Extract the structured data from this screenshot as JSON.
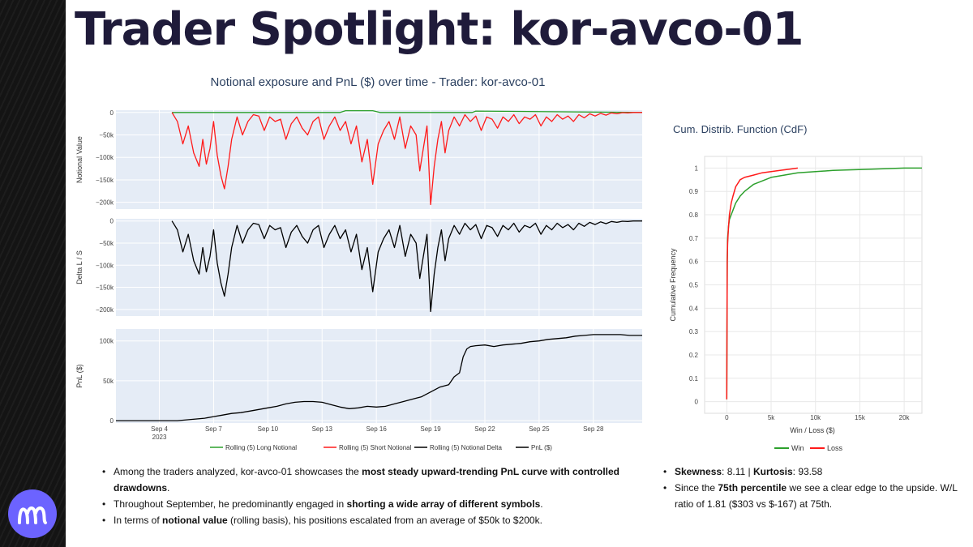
{
  "page": {
    "title": "Trader Spotlight: kor-avco-01"
  },
  "colors": {
    "long": "#2ca02c",
    "short": "#ff1a1a",
    "delta": "#000000",
    "pnl": "#000000",
    "win": "#2ca02c",
    "loss": "#ff1a1a",
    "plot_bg": "#e5ecf6",
    "accent": "#6c63ff"
  },
  "chart_data": [
    {
      "type": "line",
      "title": "Notional exposure and PnL ($) over time - Trader: kor-avco-01",
      "x_tick_labels": [
        "Sep 4",
        "Sep 7",
        "Sep 10",
        "Sep 13",
        "Sep 16",
        "Sep 19",
        "Sep 22",
        "Sep 25",
        "Sep 28"
      ],
      "x_year_label": "2023",
      "x_day_range": [
        1.6,
        30.7
      ],
      "panels": [
        {
          "ylabel": "Notional Value",
          "ylim": [
            -215000,
            5000
          ],
          "ytick_values": [
            0,
            -50000,
            -100000,
            -150000,
            -200000
          ],
          "ytick_labels": [
            "0",
            "−50k",
            "−100k",
            "−150k",
            "−200k"
          ]
        },
        {
          "ylabel": "Delta L / S",
          "ylim": [
            -215000,
            5000
          ],
          "ytick_values": [
            0,
            -50000,
            -100000,
            -150000,
            -200000
          ],
          "ytick_labels": [
            "0",
            "−50k",
            "−100k",
            "−150k",
            "−200k"
          ]
        },
        {
          "ylabel": "PnL ($)",
          "ylim": [
            -3000,
            115000
          ],
          "ytick_values": [
            0,
            50000,
            100000
          ],
          "ytick_labels": [
            "0",
            "50k",
            "100k"
          ]
        }
      ],
      "series": [
        {
          "name": "Rolling (5) Long Notional",
          "panel": 0,
          "x": [
            4.7,
            14.0,
            14.3,
            15.8,
            16.2,
            21.3,
            21.5,
            30.7
          ],
          "y": [
            0,
            0,
            4000,
            4000,
            0,
            0,
            3000,
            0
          ]
        },
        {
          "name": "Rolling (5) Short Notional",
          "panel": 0,
          "x": [
            4.7,
            5.0,
            5.3,
            5.6,
            5.9,
            6.2,
            6.4,
            6.6,
            6.8,
            7.0,
            7.2,
            7.4,
            7.6,
            7.8,
            8.0,
            8.3,
            8.6,
            8.9,
            9.2,
            9.5,
            9.8,
            10.1,
            10.4,
            10.7,
            11.0,
            11.3,
            11.6,
            11.9,
            12.2,
            12.5,
            12.8,
            13.1,
            13.4,
            13.7,
            14.0,
            14.3,
            14.6,
            14.9,
            15.2,
            15.5,
            15.8,
            16.1,
            16.4,
            16.7,
            17.0,
            17.3,
            17.6,
            17.9,
            18.2,
            18.4,
            18.6,
            18.8,
            19.0,
            19.2,
            19.4,
            19.6,
            19.8,
            20.0,
            20.3,
            20.6,
            20.9,
            21.2,
            21.5,
            21.8,
            22.1,
            22.4,
            22.7,
            23.0,
            23.3,
            23.6,
            23.9,
            24.2,
            24.5,
            24.8,
            25.1,
            25.4,
            25.7,
            26.0,
            26.3,
            26.6,
            26.9,
            27.2,
            27.5,
            27.8,
            28.1,
            28.4,
            28.7,
            29.0,
            29.3,
            29.6,
            29.9,
            30.2,
            30.7
          ],
          "y": [
            0,
            -20000,
            -70000,
            -30000,
            -90000,
            -120000,
            -60000,
            -115000,
            -80000,
            -20000,
            -95000,
            -140000,
            -170000,
            -120000,
            -60000,
            -10000,
            -50000,
            -20000,
            -5000,
            -8000,
            -40000,
            -10000,
            -20000,
            -15000,
            -60000,
            -25000,
            -10000,
            -35000,
            -50000,
            -20000,
            -10000,
            -60000,
            -30000,
            -10000,
            -40000,
            -20000,
            -70000,
            -30000,
            -110000,
            -60000,
            -160000,
            -70000,
            -40000,
            -20000,
            -60000,
            -10000,
            -80000,
            -30000,
            -50000,
            -130000,
            -80000,
            -30000,
            -205000,
            -120000,
            -60000,
            -20000,
            -90000,
            -40000,
            -10000,
            -30000,
            -5000,
            -20000,
            -8000,
            -40000,
            -10000,
            -15000,
            -35000,
            -10000,
            -20000,
            -5000,
            -25000,
            -10000,
            -15000,
            -5000,
            -30000,
            -10000,
            -20000,
            -5000,
            -15000,
            -8000,
            -20000,
            -5000,
            -12000,
            -3000,
            -8000,
            -2000,
            -6000,
            -1000,
            -3000,
            -500,
            -1000,
            0,
            0
          ]
        },
        {
          "name": "Rolling (5) Notional Delta",
          "panel": 1,
          "x": [
            4.7,
            5.0,
            5.3,
            5.6,
            5.9,
            6.2,
            6.4,
            6.6,
            6.8,
            7.0,
            7.2,
            7.4,
            7.6,
            7.8,
            8.0,
            8.3,
            8.6,
            8.9,
            9.2,
            9.5,
            9.8,
            10.1,
            10.4,
            10.7,
            11.0,
            11.3,
            11.6,
            11.9,
            12.2,
            12.5,
            12.8,
            13.1,
            13.4,
            13.7,
            14.0,
            14.3,
            14.6,
            14.9,
            15.2,
            15.5,
            15.8,
            16.1,
            16.4,
            16.7,
            17.0,
            17.3,
            17.6,
            17.9,
            18.2,
            18.4,
            18.6,
            18.8,
            19.0,
            19.2,
            19.4,
            19.6,
            19.8,
            20.0,
            20.3,
            20.6,
            20.9,
            21.2,
            21.5,
            21.8,
            22.1,
            22.4,
            22.7,
            23.0,
            23.3,
            23.6,
            23.9,
            24.2,
            24.5,
            24.8,
            25.1,
            25.4,
            25.7,
            26.0,
            26.3,
            26.6,
            26.9,
            27.2,
            27.5,
            27.8,
            28.1,
            28.4,
            28.7,
            29.0,
            29.3,
            29.6,
            29.9,
            30.2,
            30.7
          ],
          "y": [
            0,
            -20000,
            -70000,
            -30000,
            -90000,
            -120000,
            -60000,
            -115000,
            -80000,
            -20000,
            -95000,
            -140000,
            -170000,
            -120000,
            -60000,
            -10000,
            -50000,
            -20000,
            -5000,
            -8000,
            -40000,
            -10000,
            -20000,
            -15000,
            -60000,
            -25000,
            -10000,
            -35000,
            -50000,
            -20000,
            -10000,
            -60000,
            -30000,
            -10000,
            -40000,
            -20000,
            -70000,
            -30000,
            -110000,
            -60000,
            -160000,
            -70000,
            -40000,
            -20000,
            -60000,
            -10000,
            -80000,
            -30000,
            -50000,
            -130000,
            -80000,
            -30000,
            -205000,
            -120000,
            -60000,
            -20000,
            -90000,
            -40000,
            -10000,
            -30000,
            -5000,
            -20000,
            -8000,
            -40000,
            -10000,
            -15000,
            -35000,
            -10000,
            -20000,
            -5000,
            -25000,
            -10000,
            -15000,
            -5000,
            -30000,
            -10000,
            -20000,
            -5000,
            -15000,
            -8000,
            -20000,
            -5000,
            -12000,
            -3000,
            -8000,
            -2000,
            -6000,
            -1000,
            -3000,
            -500,
            -1000,
            0,
            0
          ]
        },
        {
          "name": "PnL ($)",
          "panel": 2,
          "x": [
            1.6,
            4.0,
            5.0,
            6.0,
            6.5,
            7.0,
            7.5,
            8.0,
            8.5,
            9.0,
            9.5,
            10.0,
            10.5,
            11.0,
            11.5,
            12.0,
            12.5,
            13.0,
            13.5,
            14.0,
            14.5,
            15.0,
            15.5,
            16.0,
            16.5,
            17.0,
            17.5,
            18.0,
            18.5,
            19.0,
            19.5,
            20.0,
            20.3,
            20.6,
            20.8,
            21.0,
            21.2,
            21.5,
            22.0,
            22.5,
            23.0,
            23.5,
            24.0,
            24.5,
            25.0,
            25.5,
            26.0,
            26.5,
            27.0,
            27.5,
            28.0,
            28.5,
            29.0,
            29.5,
            30.0,
            30.7
          ],
          "y": [
            0,
            0,
            0,
            2000,
            3000,
            5000,
            7000,
            9000,
            10000,
            12000,
            14000,
            16000,
            18000,
            21000,
            23000,
            24000,
            24000,
            23000,
            20000,
            17000,
            15000,
            16000,
            18000,
            17000,
            18000,
            21000,
            24000,
            27000,
            30000,
            36000,
            42000,
            45000,
            55000,
            60000,
            80000,
            90000,
            93000,
            94000,
            95000,
            93000,
            95000,
            96000,
            97000,
            99000,
            100000,
            102000,
            103000,
            104000,
            106000,
            107000,
            108000,
            108000,
            108000,
            108000,
            107000,
            107000
          ]
        }
      ],
      "legend_position": "bottom"
    },
    {
      "type": "line",
      "title": "Cum. Distrib. Function (CdF)",
      "xlabel": "Win / Loss ($)",
      "ylabel": "Cumulative Frequency",
      "xlim": [
        -2500,
        22000
      ],
      "ylim": [
        -0.05,
        1.05
      ],
      "x_tick_values": [
        0,
        5000,
        10000,
        15000,
        20000
      ],
      "x_tick_labels": [
        "0",
        "5k",
        "10k",
        "15k",
        "20k"
      ],
      "y_tick_values": [
        0,
        0.1,
        0.2,
        0.3,
        0.4,
        0.5,
        0.6,
        0.7,
        0.8,
        0.9,
        1
      ],
      "y_tick_labels": [
        "0",
        "0.1",
        "0.2",
        "0.3",
        "0.4",
        "0.5",
        "0.6",
        "0.7",
        "0.8",
        "0.9",
        "1"
      ],
      "series": [
        {
          "name": "Win",
          "x": [
            0,
            50,
            100,
            200,
            300,
            500,
            700,
            1000,
            1500,
            2000,
            3000,
            5000,
            8000,
            12000,
            16000,
            20000,
            22000
          ],
          "y": [
            0.01,
            0.6,
            0.7,
            0.75,
            0.78,
            0.8,
            0.82,
            0.85,
            0.88,
            0.9,
            0.93,
            0.96,
            0.98,
            0.99,
            0.995,
            1.0,
            1.0
          ]
        },
        {
          "name": "Loss",
          "x": [
            0,
            50,
            100,
            200,
            300,
            500,
            700,
            1000,
            1500,
            2000,
            3000,
            4000,
            5000,
            6000,
            7000,
            8000
          ],
          "y": [
            0.01,
            0.6,
            0.68,
            0.75,
            0.8,
            0.85,
            0.88,
            0.92,
            0.95,
            0.96,
            0.97,
            0.98,
            0.985,
            0.99,
            0.995,
            1.0
          ]
        }
      ],
      "legend_position": "bottom"
    }
  ],
  "notes": {
    "left": [
      [
        {
          "t": "Among the traders analyzed, kor-avco-01 showcases the ",
          "b": false
        },
        {
          "t": "most steady upward-trending PnL curve with controlled drawdowns",
          "b": true
        },
        {
          "t": ".",
          "b": false
        }
      ],
      [
        {
          "t": "Throughout September, he predominantly engaged in ",
          "b": false
        },
        {
          "t": "shorting a wide array of different symbols",
          "b": true
        },
        {
          "t": ".",
          "b": false
        }
      ],
      [
        {
          "t": "In terms of ",
          "b": false
        },
        {
          "t": "notional value",
          "b": true
        },
        {
          "t": " (rolling basis), his positions escalated from an average of $50k to $200k.",
          "b": false
        }
      ]
    ],
    "right": [
      [
        {
          "t": "Skewness",
          "b": true
        },
        {
          "t": ": 8.11 | ",
          "b": false
        },
        {
          "t": "Kurtosis",
          "b": true
        },
        {
          "t": ": 93.58",
          "b": false
        }
      ],
      [
        {
          "t": "Since the ",
          "b": false
        },
        {
          "t": "75th percentile",
          "b": true
        },
        {
          "t": " we see a clear edge to the upside. W/L ratio of 1.81 ($303 vs $-167) at 75th.",
          "b": false
        }
      ]
    ]
  }
}
